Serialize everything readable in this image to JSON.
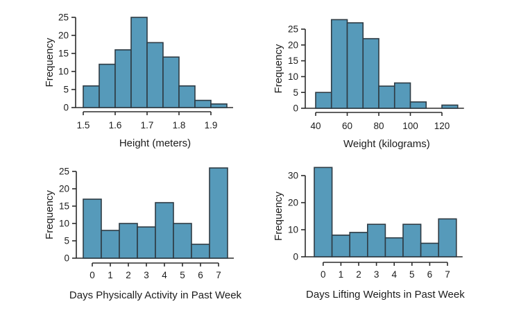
{
  "figure": {
    "background": "#ffffff",
    "bar_fill": "#569ABA",
    "bar_border": "#2E3B44",
    "axis_color": "#2b2b2b",
    "text_color": "#1c1c1c"
  },
  "chart_data": [
    {
      "id": "height",
      "type": "bar",
      "title": "",
      "xlabel": "Height (meters)",
      "ylabel": "Frequency",
      "bin_start": 1.5,
      "bin_width": 0.05,
      "values": [
        6,
        12,
        16,
        25,
        18,
        14,
        6,
        2,
        1
      ],
      "x_tick_labels": [
        "1.5",
        "1.6",
        "1.7",
        "1.8",
        "1.9"
      ],
      "y_ticks": [
        0,
        5,
        10,
        15,
        20,
        25
      ],
      "xlim": [
        1.5,
        1.95
      ],
      "ylim": [
        0,
        25
      ],
      "grid": false,
      "legend": "none"
    },
    {
      "id": "weight",
      "type": "bar",
      "title": "",
      "xlabel": "Weight (kilograms)",
      "ylabel": "Frequency",
      "bin_start": 40,
      "bin_width": 10,
      "values": [
        5,
        28,
        27,
        22,
        7,
        8,
        2,
        0,
        1
      ],
      "x_tick_labels": [
        "40",
        "60",
        "80",
        "100",
        "120"
      ],
      "y_ticks": [
        0,
        5,
        10,
        15,
        20,
        25
      ],
      "xlim": [
        40,
        130
      ],
      "ylim": [
        0,
        28
      ],
      "grid": false,
      "legend": "none"
    },
    {
      "id": "days-activity",
      "type": "bar",
      "title": "",
      "xlabel": "Days Physically Activity in Past Week",
      "ylabel": "Frequency",
      "categories": [
        "0",
        "1",
        "2",
        "3",
        "4",
        "5",
        "6",
        "7"
      ],
      "values": [
        17,
        8,
        10,
        9,
        16,
        10,
        4,
        26
      ],
      "x_tick_labels": [
        "0",
        "1",
        "2",
        "3",
        "4",
        "5",
        "6",
        "7"
      ],
      "y_ticks": [
        0,
        5,
        10,
        15,
        20,
        25
      ],
      "ylim": [
        0,
        26
      ],
      "grid": false,
      "legend": "none"
    },
    {
      "id": "days-lifting",
      "type": "bar",
      "title": "",
      "xlabel": "Days Lifting Weights in Past Week",
      "ylabel": "Frequency",
      "categories": [
        "0",
        "1",
        "2",
        "3",
        "4",
        "5",
        "6",
        "7"
      ],
      "values": [
        33,
        8,
        9,
        12,
        7,
        12,
        5,
        14
      ],
      "x_tick_labels": [
        "0",
        "1",
        "2",
        "3",
        "4",
        "5",
        "6",
        "7"
      ],
      "y_ticks": [
        0,
        10,
        20,
        30
      ],
      "ylim": [
        0,
        33
      ],
      "grid": false,
      "legend": "none"
    }
  ]
}
